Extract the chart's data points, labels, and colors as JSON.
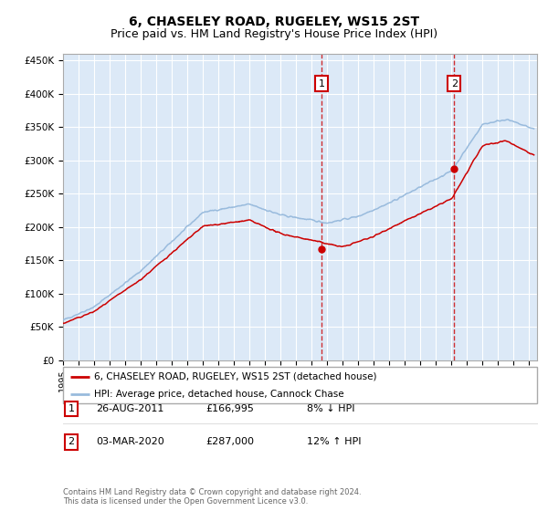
{
  "title": "6, CHASELEY ROAD, RUGELEY, WS15 2ST",
  "subtitle": "Price paid vs. HM Land Registry's House Price Index (HPI)",
  "ylim": [
    0,
    460000
  ],
  "xlim_start": 1995.0,
  "xlim_end": 2025.5,
  "background_color": "#dce9f7",
  "grid_color": "#ffffff",
  "red_line_color": "#cc0000",
  "blue_line_color": "#99bbdd",
  "marker1_date": 2011.65,
  "marker1_value": 166995,
  "marker2_date": 2020.17,
  "marker2_value": 287000,
  "legend1": "6, CHASELEY ROAD, RUGELEY, WS15 2ST (detached house)",
  "legend2": "HPI: Average price, detached house, Cannock Chase",
  "ann1_label": "1",
  "ann1_date": "26-AUG-2011",
  "ann1_price": "£166,995",
  "ann1_hpi": "8% ↓ HPI",
  "ann2_label": "2",
  "ann2_date": "03-MAR-2020",
  "ann2_price": "£287,000",
  "ann2_hpi": "12% ↑ HPI",
  "footer": "Contains HM Land Registry data © Crown copyright and database right 2024.\nThis data is licensed under the Open Government Licence v3.0.",
  "title_fontsize": 10,
  "subtitle_fontsize": 9
}
